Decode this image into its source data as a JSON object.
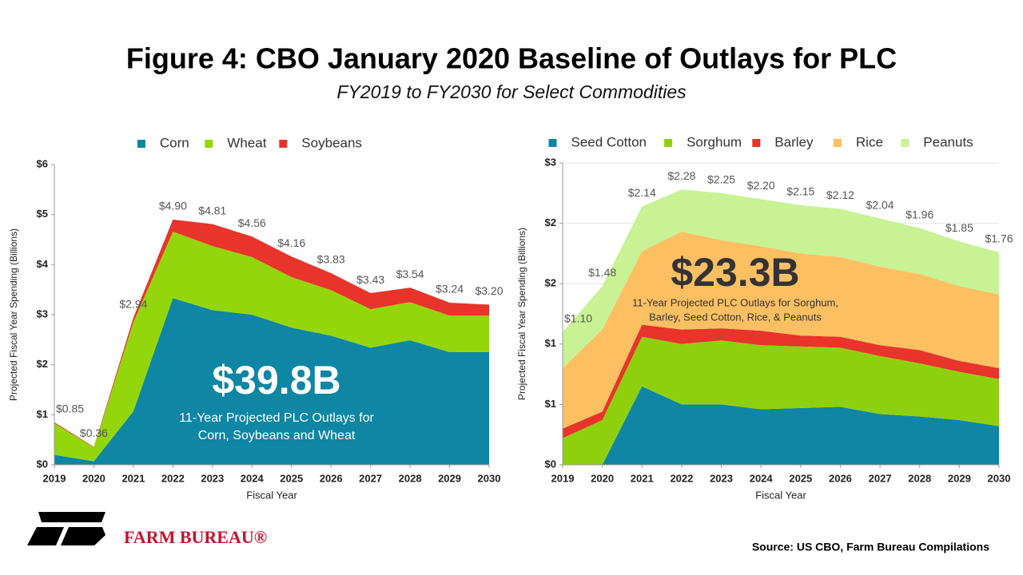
{
  "title": "Figure 4: CBO January 2020 Baseline of Outlays for PLC",
  "subtitle": "FY2019 to FY2030 for Select Commodities",
  "source": "Source: US CBO, Farm Bureau Compilations",
  "logo_text": "FARM BUREAU®",
  "chart_data": [
    {
      "type": "stacked_area",
      "categories": [
        "2019",
        "2020",
        "2021",
        "2022",
        "2023",
        "2024",
        "2025",
        "2026",
        "2027",
        "2028",
        "2029",
        "2030"
      ],
      "x_label": "Fiscal Year",
      "y_label": "Projected Fiscal Year Spending (Billions)",
      "ylim": [
        0,
        6
      ],
      "yticks": [
        {
          "value": 0,
          "label": "$0"
        },
        {
          "value": 1,
          "label": "$1"
        },
        {
          "value": 2,
          "label": "$2"
        },
        {
          "value": 3,
          "label": "$3"
        },
        {
          "value": 4,
          "label": "$4"
        },
        {
          "value": 5,
          "label": "$5"
        },
        {
          "value": 6,
          "label": "$6"
        }
      ],
      "grid": false,
      "series": [
        {
          "name": "Corn",
          "color": "#0e86a4",
          "values": [
            0.2,
            0.07,
            1.07,
            3.33,
            3.09,
            3.0,
            2.74,
            2.58,
            2.34,
            2.49,
            2.25,
            2.25
          ]
        },
        {
          "name": "Wheat",
          "color": "#94d60c",
          "values": [
            0.63,
            0.28,
            1.78,
            1.33,
            1.28,
            1.15,
            1.01,
            0.91,
            0.77,
            0.76,
            0.73,
            0.73
          ]
        },
        {
          "name": "Soybeans",
          "color": "#e8342a",
          "values": [
            0.02,
            0.01,
            0.09,
            0.24,
            0.44,
            0.41,
            0.41,
            0.34,
            0.32,
            0.29,
            0.26,
            0.22
          ]
        }
      ],
      "totals": {
        "values": [
          0.85,
          0.36,
          2.94,
          4.9,
          4.81,
          4.56,
          4.16,
          3.83,
          3.43,
          3.54,
          3.24,
          3.2
        ],
        "value_labels": [
          "$0.85",
          "$0.36",
          "$2.94",
          "$4.90",
          "$4.81",
          "$4.56",
          "$4.16",
          "$3.83",
          "$3.43",
          "$3.54",
          "$3.24",
          "$3.20"
        ]
      },
      "annotation": {
        "headline": "$39.8B",
        "lines": [
          "11-Year Projected PLC Outlays for",
          "Corn, Soybeans and Wheat"
        ]
      }
    },
    {
      "type": "stacked_area",
      "categories": [
        "2019",
        "2020",
        "2021",
        "2022",
        "2023",
        "2024",
        "2025",
        "2026",
        "2027",
        "2028",
        "2029",
        "2030"
      ],
      "x_label": "Fiscal Year",
      "y_label": "Projected Fiscal Year Spending (Billions)",
      "ylim": [
        0,
        2.5
      ],
      "yticks": [
        {
          "value": 0,
          "label": "$0"
        },
        {
          "value": 0.5,
          "label": "$1"
        },
        {
          "value": 1,
          "label": "$1"
        },
        {
          "value": 1.5,
          "label": "$2"
        },
        {
          "value": 2,
          "label": "$2"
        },
        {
          "value": 2.5,
          "label": "$3"
        }
      ],
      "grid": true,
      "series": [
        {
          "name": "Seed Cotton",
          "color": "#0e86a4",
          "values": [
            0,
            0,
            0.65,
            0.5,
            0.5,
            0.46,
            0.47,
            0.48,
            0.42,
            0.4,
            0.37,
            0.32
          ]
        },
        {
          "name": "Sorghum",
          "color": "#8fd00e",
          "values": [
            0.22,
            0.37,
            0.41,
            0.5,
            0.53,
            0.53,
            0.51,
            0.49,
            0.48,
            0.44,
            0.4,
            0.39
          ]
        },
        {
          "name": "Barley",
          "color": "#e8342a",
          "values": [
            0.08,
            0.07,
            0.1,
            0.12,
            0.1,
            0.12,
            0.09,
            0.09,
            0.09,
            0.11,
            0.09,
            0.09
          ]
        },
        {
          "name": "Rice",
          "color": "#fcbf62",
          "values": [
            0.5,
            0.68,
            0.61,
            0.81,
            0.73,
            0.7,
            0.68,
            0.66,
            0.65,
            0.63,
            0.62,
            0.61
          ]
        },
        {
          "name": "Peanuts",
          "color": "#c9f294",
          "values": [
            0.3,
            0.36,
            0.37,
            0.35,
            0.39,
            0.39,
            0.4,
            0.4,
            0.4,
            0.38,
            0.37,
            0.35
          ]
        }
      ],
      "totals": {
        "values": [
          1.1,
          1.48,
          2.14,
          2.28,
          2.25,
          2.2,
          2.15,
          2.12,
          2.04,
          1.96,
          1.85,
          1.76
        ],
        "value_labels": [
          "$1.10",
          "$1.48",
          "$2.14",
          "$2.28",
          "$2.25",
          "$2.20",
          "$2.15",
          "$2.12",
          "$2.04",
          "$1.96",
          "$1.85",
          "$1.76"
        ]
      },
      "annotation": {
        "headline": "$23.3B",
        "lines": [
          "11-Year Projected PLC Outlays for Sorghum,",
          "Barley, Seed Cotton, Rice, & Peanuts"
        ]
      }
    }
  ]
}
